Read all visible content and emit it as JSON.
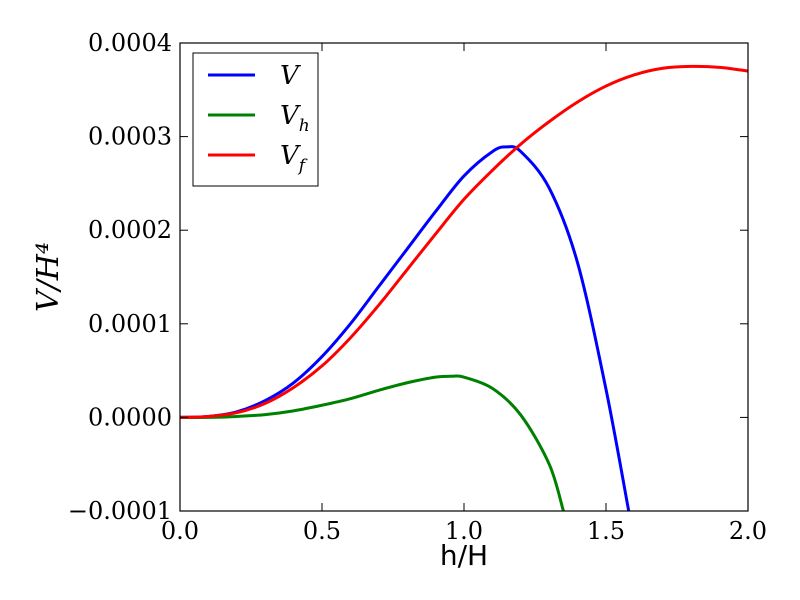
{
  "chart_data": {
    "type": "line",
    "xlabel": "h/H",
    "ylabel": "V/H⁴",
    "xlim": [
      0.0,
      2.0
    ],
    "ylim": [
      -0.0001,
      0.0004
    ],
    "xticks": [
      "0.0",
      "0.5",
      "1.0",
      "1.5",
      "2.0"
    ],
    "yticks": [
      "−0.0001",
      "0.0000",
      "0.0001",
      "0.0002",
      "0.0003",
      "0.0004"
    ],
    "grid": false,
    "legend_position": "top-left",
    "series": [
      {
        "name": "V",
        "color": "#0000ff",
        "x": [
          0.0,
          0.1,
          0.2,
          0.3,
          0.4,
          0.5,
          0.6,
          0.7,
          0.8,
          0.9,
          1.0,
          1.1,
          1.15,
          1.2,
          1.3,
          1.4,
          1.5,
          1.58
        ],
        "y": [
          0.0,
          1e-06,
          6e-06,
          1.8e-05,
          3.7e-05,
          6.5e-05,
          0.0001,
          0.00014,
          0.00018,
          0.00022,
          0.000258,
          0.000284,
          0.000289,
          0.000284,
          0.000245,
          0.000165,
          3e-05,
          -0.0001
        ]
      },
      {
        "name": "V_h",
        "color": "#008000",
        "x": [
          0.0,
          0.1,
          0.2,
          0.3,
          0.4,
          0.5,
          0.6,
          0.7,
          0.8,
          0.9,
          0.96,
          1.0,
          1.1,
          1.2,
          1.3,
          1.35
        ],
        "y": [
          0.0,
          0.0,
          1e-06,
          3e-06,
          7e-06,
          1.3e-05,
          2e-05,
          2.9e-05,
          3.7e-05,
          4.3e-05,
          4.4e-05,
          4.3e-05,
          3.1e-05,
          2.5e-06,
          -5e-05,
          -0.0001
        ]
      },
      {
        "name": "V_f",
        "color": "#ff0000",
        "x": [
          0.0,
          0.1,
          0.2,
          0.3,
          0.4,
          0.5,
          0.6,
          0.7,
          0.8,
          0.9,
          1.0,
          1.1,
          1.2,
          1.3,
          1.4,
          1.5,
          1.6,
          1.7,
          1.8,
          1.9,
          2.0
        ],
        "y": [
          0.0,
          1e-06,
          5e-06,
          1.5e-05,
          3.2e-05,
          5.5e-05,
          8.5e-05,
          0.00012,
          0.000158,
          0.000196,
          0.000233,
          0.000264,
          0.000292,
          0.000316,
          0.000337,
          0.000354,
          0.000366,
          0.000373,
          0.000375,
          0.000374,
          0.00037
        ]
      }
    ],
    "legend": {
      "entries": [
        {
          "main": "V",
          "sub": ""
        },
        {
          "main": "V",
          "sub": "h"
        },
        {
          "main": "V",
          "sub": "f"
        }
      ]
    }
  }
}
